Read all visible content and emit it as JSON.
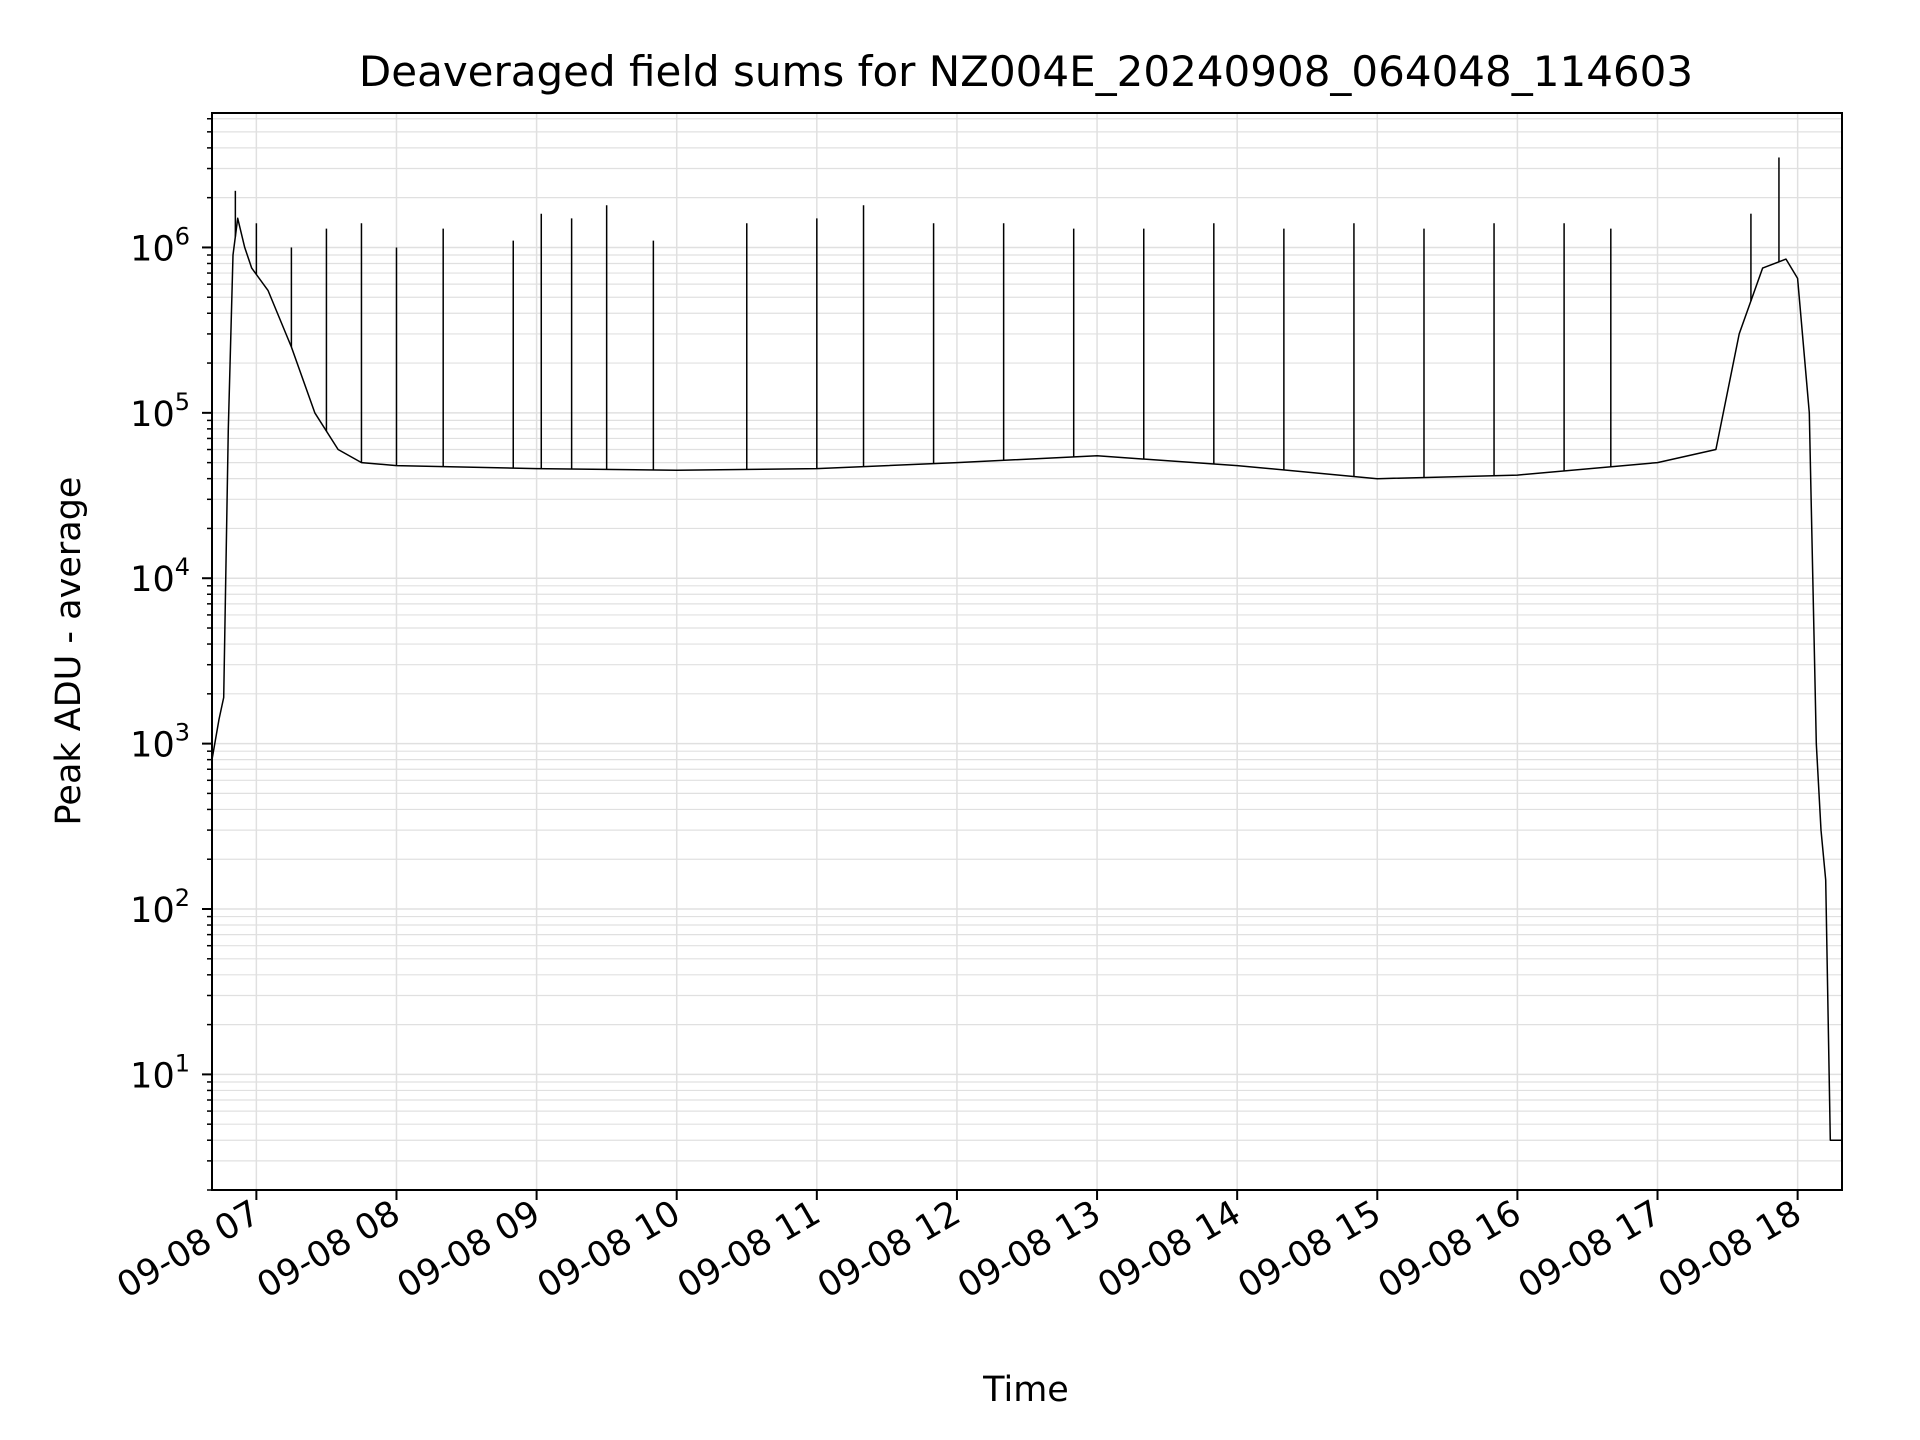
{
  "chart_data": {
    "type": "line",
    "title": "Deaveraged field sums for NZ004E_20240908_064048_114603",
    "xlabel": "Time",
    "ylabel": "Peak ADU - average",
    "yscale": "log",
    "ylim": [
      2,
      6500000
    ],
    "xlim": [
      "09-08 06:41",
      "09-08 18:19"
    ],
    "grid": true,
    "line_color": "#000000",
    "grid_color": "#e0e0e0",
    "x_ticks": [
      "09-08 07",
      "09-08 08",
      "09-08 09",
      "09-08 10",
      "09-08 11",
      "09-08 12",
      "09-08 13",
      "09-08 14",
      "09-08 15",
      "09-08 16",
      "09-08 17",
      "09-08 18"
    ],
    "y_ticks": [
      {
        "value": 10,
        "base": "10",
        "exp": "1"
      },
      {
        "value": 100,
        "base": "10",
        "exp": "2"
      },
      {
        "value": 1000,
        "base": "10",
        "exp": "3"
      },
      {
        "value": 10000,
        "base": "10",
        "exp": "4"
      },
      {
        "value": 100000,
        "base": "10",
        "exp": "5"
      },
      {
        "value": 1000000,
        "base": "10",
        "exp": "6"
      }
    ],
    "series": [
      {
        "x": [
          "09-08 06:41",
          "09-08 06:44",
          "09-08 06:46",
          "09-08 06:48",
          "09-08 06:50",
          "09-08 06:52",
          "09-08 06:55",
          "09-08 06:58",
          "09-08 07:05",
          "09-08 07:15",
          "09-08 07:25",
          "09-08 07:35",
          "09-08 07:45",
          "09-08 08:00",
          "09-08 09:00",
          "09-08 10:00",
          "09-08 11:00",
          "09-08 12:00",
          "09-08 13:00",
          "09-08 14:00",
          "09-08 15:00",
          "09-08 16:00",
          "09-08 17:00",
          "09-08 17:25",
          "09-08 17:35",
          "09-08 17:45",
          "09-08 17:55",
          "09-08 18:00",
          "09-08 18:05",
          "09-08 18:08",
          "09-08 18:10",
          "09-08 18:12",
          "09-08 18:14",
          "09-08 18:16",
          "09-08 18:19"
        ],
        "y": [
          800,
          1400,
          1900,
          80000,
          900000,
          1500000,
          1000000,
          750000,
          550000,
          250000,
          100000,
          60000,
          50000,
          48000,
          46000,
          45000,
          46000,
          50000,
          55000,
          48000,
          40000,
          42000,
          50000,
          60000,
          300000,
          750000,
          850000,
          650000,
          100000,
          1000,
          300,
          150,
          4,
          4,
          4
        ]
      }
    ],
    "spikes": [
      {
        "x": "09-08 06:51",
        "y": 2200000
      },
      {
        "x": "09-08 07:00",
        "y": 1400000
      },
      {
        "x": "09-08 07:15",
        "y": 1000000
      },
      {
        "x": "09-08 07:30",
        "y": 1300000
      },
      {
        "x": "09-08 07:45",
        "y": 1400000
      },
      {
        "x": "09-08 08:00",
        "y": 1000000
      },
      {
        "x": "09-08 08:20",
        "y": 1300000
      },
      {
        "x": "09-08 08:50",
        "y": 1100000
      },
      {
        "x": "09-08 09:02",
        "y": 1600000
      },
      {
        "x": "09-08 09:15",
        "y": 1500000
      },
      {
        "x": "09-08 09:30",
        "y": 1800000
      },
      {
        "x": "09-08 09:50",
        "y": 1100000
      },
      {
        "x": "09-08 10:30",
        "y": 1400000
      },
      {
        "x": "09-08 11:00",
        "y": 1500000
      },
      {
        "x": "09-08 11:20",
        "y": 1800000
      },
      {
        "x": "09-08 11:50",
        "y": 1400000
      },
      {
        "x": "09-08 12:20",
        "y": 1400000
      },
      {
        "x": "09-08 12:50",
        "y": 1300000
      },
      {
        "x": "09-08 13:20",
        "y": 1300000
      },
      {
        "x": "09-08 13:50",
        "y": 1400000
      },
      {
        "x": "09-08 14:20",
        "y": 1300000
      },
      {
        "x": "09-08 14:50",
        "y": 1400000
      },
      {
        "x": "09-08 15:20",
        "y": 1300000
      },
      {
        "x": "09-08 15:50",
        "y": 1400000
      },
      {
        "x": "09-08 16:20",
        "y": 1400000
      },
      {
        "x": "09-08 16:40",
        "y": 1300000
      },
      {
        "x": "09-08 17:40",
        "y": 1600000
      },
      {
        "x": "09-08 17:52",
        "y": 3500000
      }
    ]
  }
}
